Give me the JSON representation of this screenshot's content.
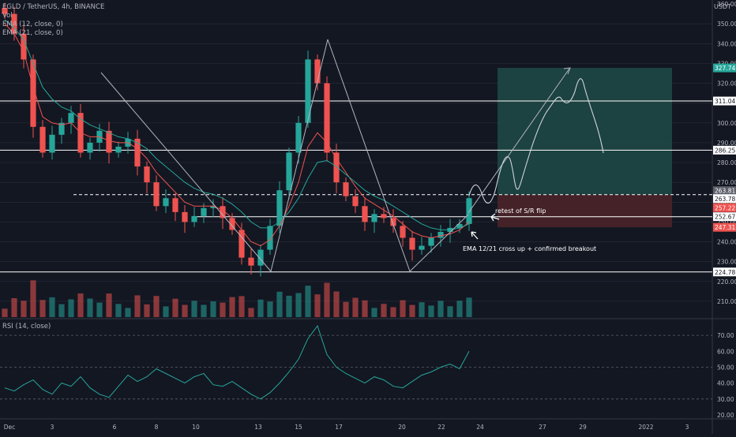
{
  "legend": {
    "symbol_line": "EGLD / TetherUS, 4h, BINANCE",
    "vol": "Vol",
    "ema12": "EMA (12, close, 0)",
    "ema21": "EMA (21, close, 0)",
    "rsi": "RSI (14, close)"
  },
  "currency": "USDT",
  "colors": {
    "background": "#131722",
    "up": "#26a69a",
    "down": "#ef5350",
    "ema12": "#ef5350",
    "ema21": "#26a69a",
    "rsi": "#26a69a",
    "grid": "#2a2e39",
    "level": "#ffffff",
    "target_zone": "#1f4a47",
    "stop_zone": "#4a2429"
  },
  "annotations": {
    "retest": "retest of S/R flip",
    "cross": "EMA 12/21 cross up + confirmed breakout"
  },
  "chart_data": [
    {
      "type": "candlestick",
      "title": "EGLD / TetherUS, 4h, BINANCE",
      "y_axis_ticks": [
        350,
        340,
        330,
        320,
        310,
        300,
        290,
        280,
        270,
        260,
        250,
        240,
        230,
        220,
        210
      ],
      "y_axis_top_tick_label": "360.00",
      "ylim": [
        202,
        362
      ],
      "x_axis_labels": [
        "Dec",
        "3",
        "6",
        "8",
        "10",
        "13",
        "15",
        "17",
        "20",
        "22",
        "24",
        "27",
        "29",
        "2022",
        "3"
      ],
      "price_labels": [
        327.74,
        311.04,
        286.25,
        263.81,
        263.78,
        257.22,
        252.67,
        247.31,
        224.78
      ],
      "horizontal_levels": [
        311.04,
        286.25,
        263.78,
        252.67,
        224.78
      ],
      "dashed_level": 263.78,
      "target_zone": [
        263.81,
        327.74
      ],
      "stop_zone": [
        247.31,
        263.81
      ],
      "approx_close_path": [
        355,
        345,
        332,
        298,
        285,
        294,
        300,
        305,
        285,
        290,
        296,
        285,
        288,
        292,
        278,
        270,
        258,
        262,
        255,
        250,
        253,
        257,
        258,
        252,
        246,
        232,
        228,
        236,
        248,
        266,
        285,
        300,
        332,
        320,
        285,
        270,
        263,
        258,
        250,
        254,
        252,
        248,
        242,
        236,
        238,
        242,
        245,
        247,
        249,
        262
      ],
      "ema12_approx": [
        350,
        345,
        336,
        318,
        303,
        300,
        299,
        300,
        295,
        293,
        293,
        291,
        290,
        290,
        287,
        282,
        275,
        270,
        265,
        260,
        258,
        258,
        258,
        256,
        252,
        246,
        240,
        238,
        241,
        248,
        258,
        270,
        288,
        295,
        290,
        282,
        275,
        268,
        262,
        259,
        256,
        253,
        249,
        245,
        243,
        242,
        243,
        244,
        246,
        250
      ],
      "ema21_approx": [
        352,
        348,
        342,
        330,
        318,
        312,
        308,
        306,
        302,
        299,
        297,
        295,
        293,
        292,
        290,
        287,
        282,
        278,
        274,
        270,
        267,
        265,
        264,
        262,
        259,
        255,
        250,
        247,
        247,
        250,
        255,
        262,
        272,
        280,
        281,
        278,
        274,
        270,
        266,
        263,
        261,
        258,
        255,
        252,
        249,
        247,
        246,
        246,
        247,
        249
      ]
    },
    {
      "type": "line",
      "title": "RSI (14, close)",
      "y_axis_ticks": [
        70,
        60,
        50,
        40,
        30,
        20
      ],
      "reference_levels": [
        70,
        50,
        30
      ],
      "ylim": [
        18,
        80
      ],
      "values": [
        37,
        35,
        39,
        42,
        36,
        33,
        40,
        38,
        44,
        37,
        33,
        31,
        38,
        45,
        41,
        44,
        49,
        46,
        43,
        40,
        44,
        46,
        39,
        38,
        41,
        37,
        33,
        30,
        34,
        40,
        47,
        55,
        68,
        76,
        58,
        50,
        46,
        43,
        40,
        44,
        42,
        38,
        37,
        41,
        45,
        47,
        50,
        52,
        49,
        60
      ]
    }
  ]
}
